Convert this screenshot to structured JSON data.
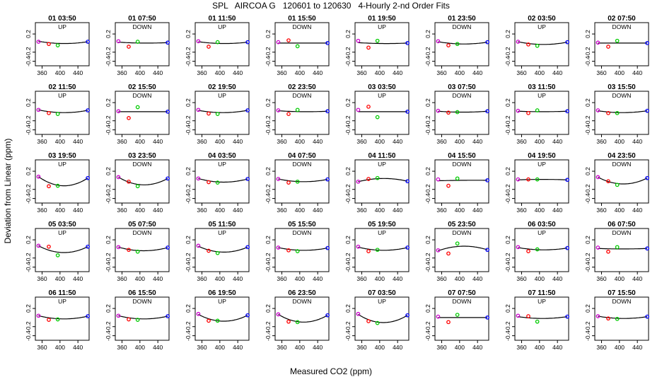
{
  "figure": {
    "title": "SPL   AIRCOA G   120601 to 120630   4-Hourly 2-nd Order Fits",
    "xlabel": "Measured CO2 (ppm)",
    "ylabel": "Deviation from Linear (ppm)"
  },
  "colors": {
    "curve": "#000000",
    "standard_1": "#cc00cc",
    "standard_2": "#ff0000",
    "standard_3": "#00cc00",
    "standard_4": "#0000ff"
  },
  "chart_data": {
    "type": "scatter",
    "layout": "small multiples, 5 rows x 8 columns",
    "xlim": [
      345,
      465
    ],
    "ylim": [
      -0.5,
      0.45
    ],
    "xticks": [
      "360",
      "400",
      "440"
    ],
    "yticks": [
      "-0.4",
      "-0.2",
      "0.2"
    ],
    "standard_x": [
      352,
      375,
      395,
      462
    ],
    "panels": [
      {
        "title": "01 03:50",
        "mode": "UP",
        "y": [
          0.03,
          -0.02,
          -0.05,
          0.03
        ],
        "curve": [
          0.04,
          -0.01
        ]
      },
      {
        "title": "01 07:50",
        "mode": "DOWN",
        "y": [
          0.04,
          -0.08,
          0.03,
          0.01
        ],
        "curve": [
          0.02,
          0.0
        ]
      },
      {
        "title": "01 11:50",
        "mode": "UP",
        "y": [
          0.04,
          -0.08,
          0.02,
          0.02
        ],
        "curve": [
          0.03,
          -0.01
        ]
      },
      {
        "title": "01 15:50",
        "mode": "DOWN",
        "y": [
          0.02,
          0.06,
          -0.07,
          0.0
        ],
        "curve": [
          0.0,
          0.0
        ]
      },
      {
        "title": "01 19:50",
        "mode": "UP",
        "y": [
          0.05,
          -0.1,
          0.05,
          0.0
        ],
        "curve": [
          0.01,
          -0.01
        ]
      },
      {
        "title": "01 23:50",
        "mode": "DOWN",
        "y": [
          0.04,
          -0.05,
          -0.02,
          0.02
        ],
        "curve": [
          0.03,
          -0.02
        ]
      },
      {
        "title": "02 03:50",
        "mode": "UP",
        "y": [
          0.03,
          -0.03,
          -0.06,
          0.02
        ],
        "curve": [
          0.03,
          -0.03
        ]
      },
      {
        "title": "02 07:50",
        "mode": "DOWN",
        "y": [
          0.01,
          -0.08,
          0.05,
          0.0
        ],
        "curve": [
          0.0,
          0.0
        ]
      },
      {
        "title": "02 11:50",
        "mode": "UP",
        "y": [
          0.04,
          -0.03,
          -0.05,
          0.03
        ],
        "curve": [
          0.04,
          -0.02
        ]
      },
      {
        "title": "02 15:50",
        "mode": "DOWN",
        "y": [
          0.01,
          -0.14,
          0.1,
          0.0
        ],
        "curve": [
          0.0,
          0.0
        ]
      },
      {
        "title": "02 19:50",
        "mode": "UP",
        "y": [
          0.04,
          -0.04,
          -0.05,
          0.03
        ],
        "curve": [
          0.03,
          -0.02
        ]
      },
      {
        "title": "02 23:50",
        "mode": "DOWN",
        "y": [
          0.03,
          -0.05,
          0.04,
          0.01
        ],
        "curve": [
          0.02,
          0.0
        ]
      },
      {
        "title": "03 03:50",
        "mode": "UP",
        "y": [
          0.04,
          0.11,
          -0.12,
          0.0
        ],
        "curve": [
          0.0,
          0.0
        ]
      },
      {
        "title": "03 07:50",
        "mode": "DOWN",
        "y": [
          0.02,
          -0.02,
          -0.01,
          0.01
        ],
        "curve": [
          0.01,
          -0.01
        ]
      },
      {
        "title": "03 11:50",
        "mode": "UP",
        "y": [
          0.02,
          -0.03,
          0.03,
          0.01
        ],
        "curve": [
          0.01,
          0.0
        ]
      },
      {
        "title": "03 15:50",
        "mode": "DOWN",
        "y": [
          0.03,
          -0.03,
          -0.03,
          0.02
        ],
        "curve": [
          0.02,
          -0.02
        ]
      },
      {
        "title": "03 19:50",
        "mode": "UP",
        "y": [
          0.08,
          -0.13,
          -0.12,
          0.05
        ],
        "curve": [
          0.08,
          -0.12
        ]
      },
      {
        "title": "03 23:50",
        "mode": "DOWN",
        "y": [
          0.07,
          -0.03,
          -0.13,
          0.04
        ],
        "curve": [
          0.07,
          -0.1
        ]
      },
      {
        "title": "04 03:50",
        "mode": "UP",
        "y": [
          0.04,
          -0.04,
          -0.05,
          0.03
        ],
        "curve": [
          0.04,
          -0.04
        ]
      },
      {
        "title": "04 07:50",
        "mode": "DOWN",
        "y": [
          0.03,
          -0.05,
          -0.03,
          0.02
        ],
        "curve": [
          0.03,
          -0.03
        ]
      },
      {
        "title": "04 11:50",
        "mode": "UP",
        "y": [
          -0.03,
          0.03,
          0.05,
          -0.02
        ],
        "curve": [
          -0.03,
          0.04
        ]
      },
      {
        "title": "04 15:50",
        "mode": "DOWN",
        "y": [
          0.02,
          -0.12,
          0.04,
          0.0
        ],
        "curve": [
          -0.01,
          0.0
        ]
      },
      {
        "title": "04 19:50",
        "mode": "UP",
        "y": [
          0.02,
          0.02,
          0.02,
          0.01
        ],
        "curve": [
          0.01,
          0.02
        ]
      },
      {
        "title": "04 23:50",
        "mode": "DOWN",
        "y": [
          0.07,
          -0.02,
          -0.1,
          0.05
        ],
        "curve": [
          0.07,
          -0.08
        ]
      },
      {
        "title": "05 03:50",
        "mode": "UP",
        "y": [
          0.07,
          0.05,
          -0.14,
          0.05
        ],
        "curve": [
          0.07,
          -0.08
        ]
      },
      {
        "title": "05 07:50",
        "mode": "DOWN",
        "y": [
          0.04,
          -0.02,
          -0.06,
          0.03
        ],
        "curve": [
          0.04,
          -0.04
        ]
      },
      {
        "title": "05 11:50",
        "mode": "UP",
        "y": [
          0.07,
          -0.04,
          -0.09,
          0.04
        ],
        "curve": [
          0.06,
          -0.07
        ]
      },
      {
        "title": "05 15:50",
        "mode": "DOWN",
        "y": [
          0.03,
          -0.03,
          -0.05,
          0.02
        ],
        "curve": [
          0.03,
          -0.03
        ]
      },
      {
        "title": "05 19:50",
        "mode": "UP",
        "y": [
          0.05,
          -0.05,
          -0.02,
          0.03
        ],
        "curve": [
          0.04,
          -0.03
        ]
      },
      {
        "title": "05 23:50",
        "mode": "DOWN",
        "y": [
          -0.03,
          -0.1,
          0.12,
          -0.02
        ],
        "curve": [
          -0.04,
          0.06
        ]
      },
      {
        "title": "06 03:50",
        "mode": "UP",
        "y": [
          0.04,
          -0.05,
          -0.01,
          0.02
        ],
        "curve": [
          0.03,
          -0.02
        ]
      },
      {
        "title": "06 07:50",
        "mode": "DOWN",
        "y": [
          0.03,
          -0.06,
          0.04,
          0.01
        ],
        "curve": [
          0.01,
          0.0
        ]
      },
      {
        "title": "06 11:50",
        "mode": "UP",
        "y": [
          0.04,
          -0.05,
          -0.04,
          0.03
        ],
        "curve": [
          0.04,
          -0.03
        ]
      },
      {
        "title": "06 15:50",
        "mode": "DOWN",
        "y": [
          0.04,
          -0.04,
          -0.05,
          0.03
        ],
        "curve": [
          0.04,
          -0.03
        ]
      },
      {
        "title": "06 19:50",
        "mode": "UP",
        "y": [
          0.08,
          -0.07,
          -0.07,
          0.05
        ],
        "curve": [
          0.07,
          -0.08
        ]
      },
      {
        "title": "06 23:50",
        "mode": "DOWN",
        "y": [
          0.07,
          -0.09,
          -0.1,
          0.05
        ],
        "curve": [
          0.07,
          -0.1
        ]
      },
      {
        "title": "07 03:50",
        "mode": "UP",
        "y": [
          0.08,
          -0.08,
          -0.12,
          0.05
        ],
        "curve": [
          0.07,
          -0.11
        ]
      },
      {
        "title": "07 07:50",
        "mode": "DOWN",
        "y": [
          0.02,
          -0.1,
          0.06,
          0.0
        ],
        "curve": [
          0.0,
          0.0
        ]
      },
      {
        "title": "07 11:50",
        "mode": "UP",
        "y": [
          0.04,
          0.03,
          -0.09,
          0.02
        ],
        "curve": [
          0.02,
          -0.02
        ]
      },
      {
        "title": "07 15:50",
        "mode": "DOWN",
        "y": [
          0.03,
          -0.02,
          -0.03,
          0.02
        ],
        "curve": [
          0.03,
          -0.02
        ]
      }
    ]
  }
}
